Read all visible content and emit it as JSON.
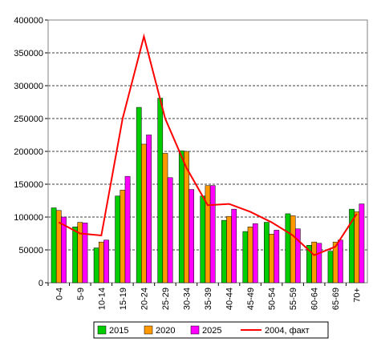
{
  "chart_data": {
    "type": "bar",
    "categories": [
      "0-4",
      "5-9",
      "10-14",
      "15-19",
      "20-24",
      "25-29",
      "30-34",
      "35-39",
      "40-44",
      "45-49",
      "50-54",
      "55-59",
      "60-64",
      "65-69",
      "70+"
    ],
    "series": [
      {
        "name": "2015",
        "color": "#00cc00",
        "values": [
          114000,
          85000,
          53000,
          132000,
          267000,
          281000,
          201000,
          132000,
          95000,
          78000,
          92000,
          105000,
          57000,
          48000,
          112000
        ]
      },
      {
        "name": "2020",
        "color": "#ff9900",
        "values": [
          110000,
          92000,
          62000,
          141000,
          211000,
          197000,
          200000,
          148000,
          101000,
          85000,
          74000,
          102000,
          62000,
          62000,
          108000
        ]
      },
      {
        "name": "2025",
        "color": "#ff00ff",
        "values": [
          100000,
          91000,
          65000,
          162000,
          225000,
          160000,
          142000,
          148000,
          112000,
          90000,
          80000,
          82000,
          60000,
          65000,
          120000
        ]
      },
      {
        "name": "2004, факт",
        "color": "#ff0000",
        "type": "line",
        "values": [
          92000,
          75000,
          72000,
          250000,
          375000,
          250000,
          175000,
          118000,
          120000,
          108000,
          92000,
          72000,
          42000,
          55000,
          105000
        ]
      }
    ],
    "ylim": [
      0,
      400000
    ],
    "yticks": [
      0,
      50000,
      100000,
      150000,
      200000,
      250000,
      300000,
      350000,
      400000
    ],
    "grid": true
  }
}
